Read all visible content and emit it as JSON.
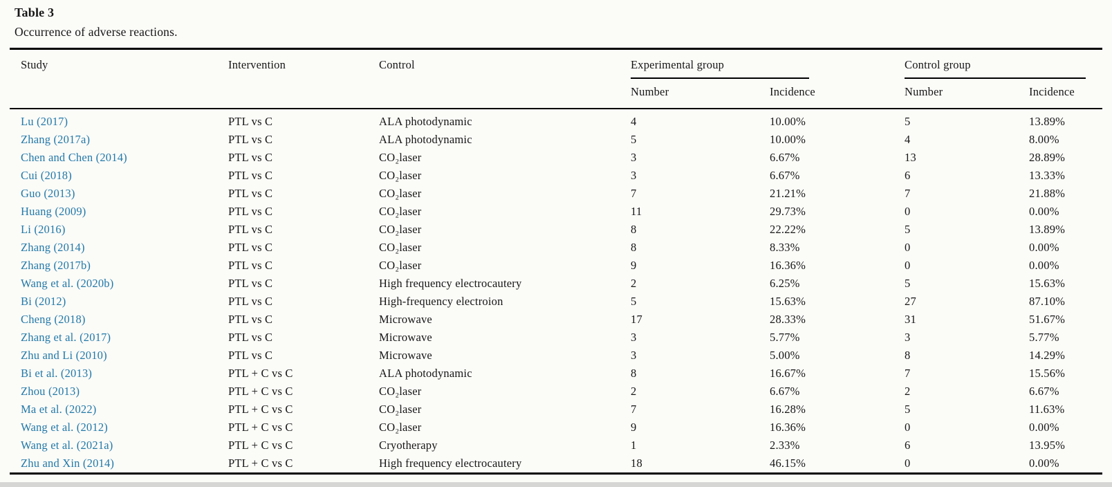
{
  "page": {
    "background": "#fbfbf8",
    "link_color": "#2279a8"
  },
  "table": {
    "label": "Table 3",
    "caption": "Occurrence of adverse reactions.",
    "header": {
      "study": "Study",
      "intervention": "Intervention",
      "control": "Control",
      "experimental_group": "Experimental group",
      "control_group": "Control group",
      "exp_number": "Number",
      "exp_incidence": "Incidence",
      "ctrl_number": "Number",
      "ctrl_incidence": "Incidence"
    },
    "rows": [
      {
        "study": "Lu (2017)",
        "intervention": "PTL vs C",
        "control": "ALA photodynamic",
        "exp_number": "4",
        "exp_incidence": "10.00%",
        "ctrl_number": "5",
        "ctrl_incidence": "13.89%"
      },
      {
        "study": "Zhang (2017a)",
        "intervention": "PTL vs C",
        "control": "ALA photodynamic",
        "exp_number": "5",
        "exp_incidence": "10.00%",
        "ctrl_number": "4",
        "ctrl_incidence": "8.00%"
      },
      {
        "study": "Chen and Chen (2014)",
        "intervention": "PTL vs C",
        "control": "CO₂laser",
        "exp_number": "3",
        "exp_incidence": "6.67%",
        "ctrl_number": "13",
        "ctrl_incidence": "28.89%"
      },
      {
        "study": "Cui (2018)",
        "intervention": "PTL vs C",
        "control": "CO₂laser",
        "exp_number": "3",
        "exp_incidence": "6.67%",
        "ctrl_number": "6",
        "ctrl_incidence": "13.33%"
      },
      {
        "study": "Guo (2013)",
        "intervention": "PTL vs C",
        "control": "CO₂laser",
        "exp_number": "7",
        "exp_incidence": "21.21%",
        "ctrl_number": "7",
        "ctrl_incidence": "21.88%"
      },
      {
        "study": "Huang (2009)",
        "intervention": "PTL vs C",
        "control": "CO₂laser",
        "exp_number": "11",
        "exp_incidence": "29.73%",
        "ctrl_number": "0",
        "ctrl_incidence": "0.00%"
      },
      {
        "study": "Li (2016)",
        "intervention": "PTL vs C",
        "control": "CO₂laser",
        "exp_number": "8",
        "exp_incidence": "22.22%",
        "ctrl_number": "5",
        "ctrl_incidence": "13.89%"
      },
      {
        "study": "Zhang (2014)",
        "intervention": "PTL vs C",
        "control": "CO₂laser",
        "exp_number": "8",
        "exp_incidence": "8.33%",
        "ctrl_number": "0",
        "ctrl_incidence": "0.00%"
      },
      {
        "study": "Zhang (2017b)",
        "intervention": "PTL vs C",
        "control": "CO₂laser",
        "exp_number": "9",
        "exp_incidence": "16.36%",
        "ctrl_number": "0",
        "ctrl_incidence": "0.00%"
      },
      {
        "study": "Wang et al. (2020b)",
        "intervention": "PTL vs C",
        "control": "High frequency electrocautery",
        "exp_number": "2",
        "exp_incidence": "6.25%",
        "ctrl_number": "5",
        "ctrl_incidence": "15.63%"
      },
      {
        "study": "Bi (2012)",
        "intervention": "PTL vs C",
        "control": "High-frequency electroion",
        "exp_number": "5",
        "exp_incidence": "15.63%",
        "ctrl_number": "27",
        "ctrl_incidence": "87.10%"
      },
      {
        "study": "Cheng (2018)",
        "intervention": "PTL vs C",
        "control": "Microwave",
        "exp_number": "17",
        "exp_incidence": "28.33%",
        "ctrl_number": "31",
        "ctrl_incidence": "51.67%"
      },
      {
        "study": "Zhang et al. (2017)",
        "intervention": "PTL vs C",
        "control": "Microwave",
        "exp_number": "3",
        "exp_incidence": "5.77%",
        "ctrl_number": "3",
        "ctrl_incidence": "5.77%"
      },
      {
        "study": "Zhu and Li (2010)",
        "intervention": "PTL vs C",
        "control": "Microwave",
        "exp_number": "3",
        "exp_incidence": "5.00%",
        "ctrl_number": "8",
        "ctrl_incidence": "14.29%"
      },
      {
        "study": "Bi et al. (2013)",
        "intervention": "PTL + C vs C",
        "control": "ALA photodynamic",
        "exp_number": "8",
        "exp_incidence": "16.67%",
        "ctrl_number": "7",
        "ctrl_incidence": "15.56%"
      },
      {
        "study": "Zhou (2013)",
        "intervention": "PTL + C vs C",
        "control": "CO₂laser",
        "exp_number": "2",
        "exp_incidence": "6.67%",
        "ctrl_number": "2",
        "ctrl_incidence": "6.67%"
      },
      {
        "study": "Ma et al. (2022)",
        "intervention": "PTL + C vs C",
        "control": "CO₂laser",
        "exp_number": "7",
        "exp_incidence": "16.28%",
        "ctrl_number": "5",
        "ctrl_incidence": "11.63%"
      },
      {
        "study": "Wang et al. (2012)",
        "intervention": "PTL + C vs C",
        "control": "CO₂laser",
        "exp_number": "9",
        "exp_incidence": "16.36%",
        "ctrl_number": "0",
        "ctrl_incidence": "0.00%"
      },
      {
        "study": "Wang et al. (2021a)",
        "intervention": "PTL + C vs C",
        "control": "Cryotherapy",
        "exp_number": "1",
        "exp_incidence": "2.33%",
        "ctrl_number": "6",
        "ctrl_incidence": "13.95%"
      },
      {
        "study": "Zhu and Xin (2014)",
        "intervention": "PTL + C vs C",
        "control": "High frequency electrocautery",
        "exp_number": "18",
        "exp_incidence": "46.15%",
        "ctrl_number": "0",
        "ctrl_incidence": "0.00%"
      }
    ]
  }
}
